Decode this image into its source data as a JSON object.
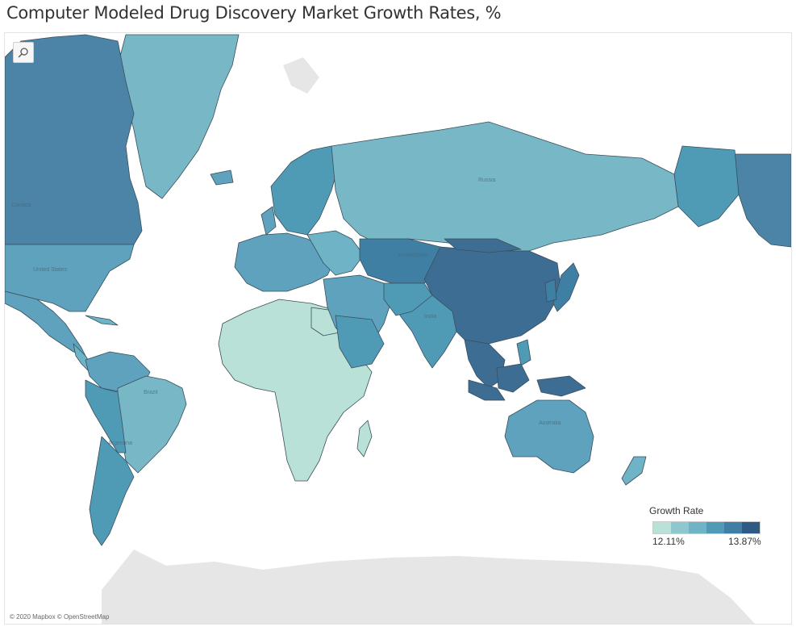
{
  "title": "Computer Modeled Drug Discovery Market Growth Rates, %",
  "attribution": "© 2020 Mapbox © OpenStreetMap",
  "toolbar": {
    "search_icon": "magnifier-icon"
  },
  "map": {
    "country_labels": [
      "Canada",
      "United States",
      "Brazil",
      "Russia",
      "China",
      "India",
      "Australia",
      "Argentina",
      "Kazakhstan"
    ]
  },
  "legend": {
    "title": "Growth Rate",
    "min_label": "12.11%",
    "max_label": "13.87%",
    "colors": [
      "#b9e1d7",
      "#8fc7cf",
      "#6fb3c6",
      "#4f9bb6",
      "#3e7fa3",
      "#2e5b86"
    ]
  },
  "colors": {
    "background": "#ffffff",
    "land_no_data": "#e6e6e6",
    "border": "#3a4e5c"
  }
}
